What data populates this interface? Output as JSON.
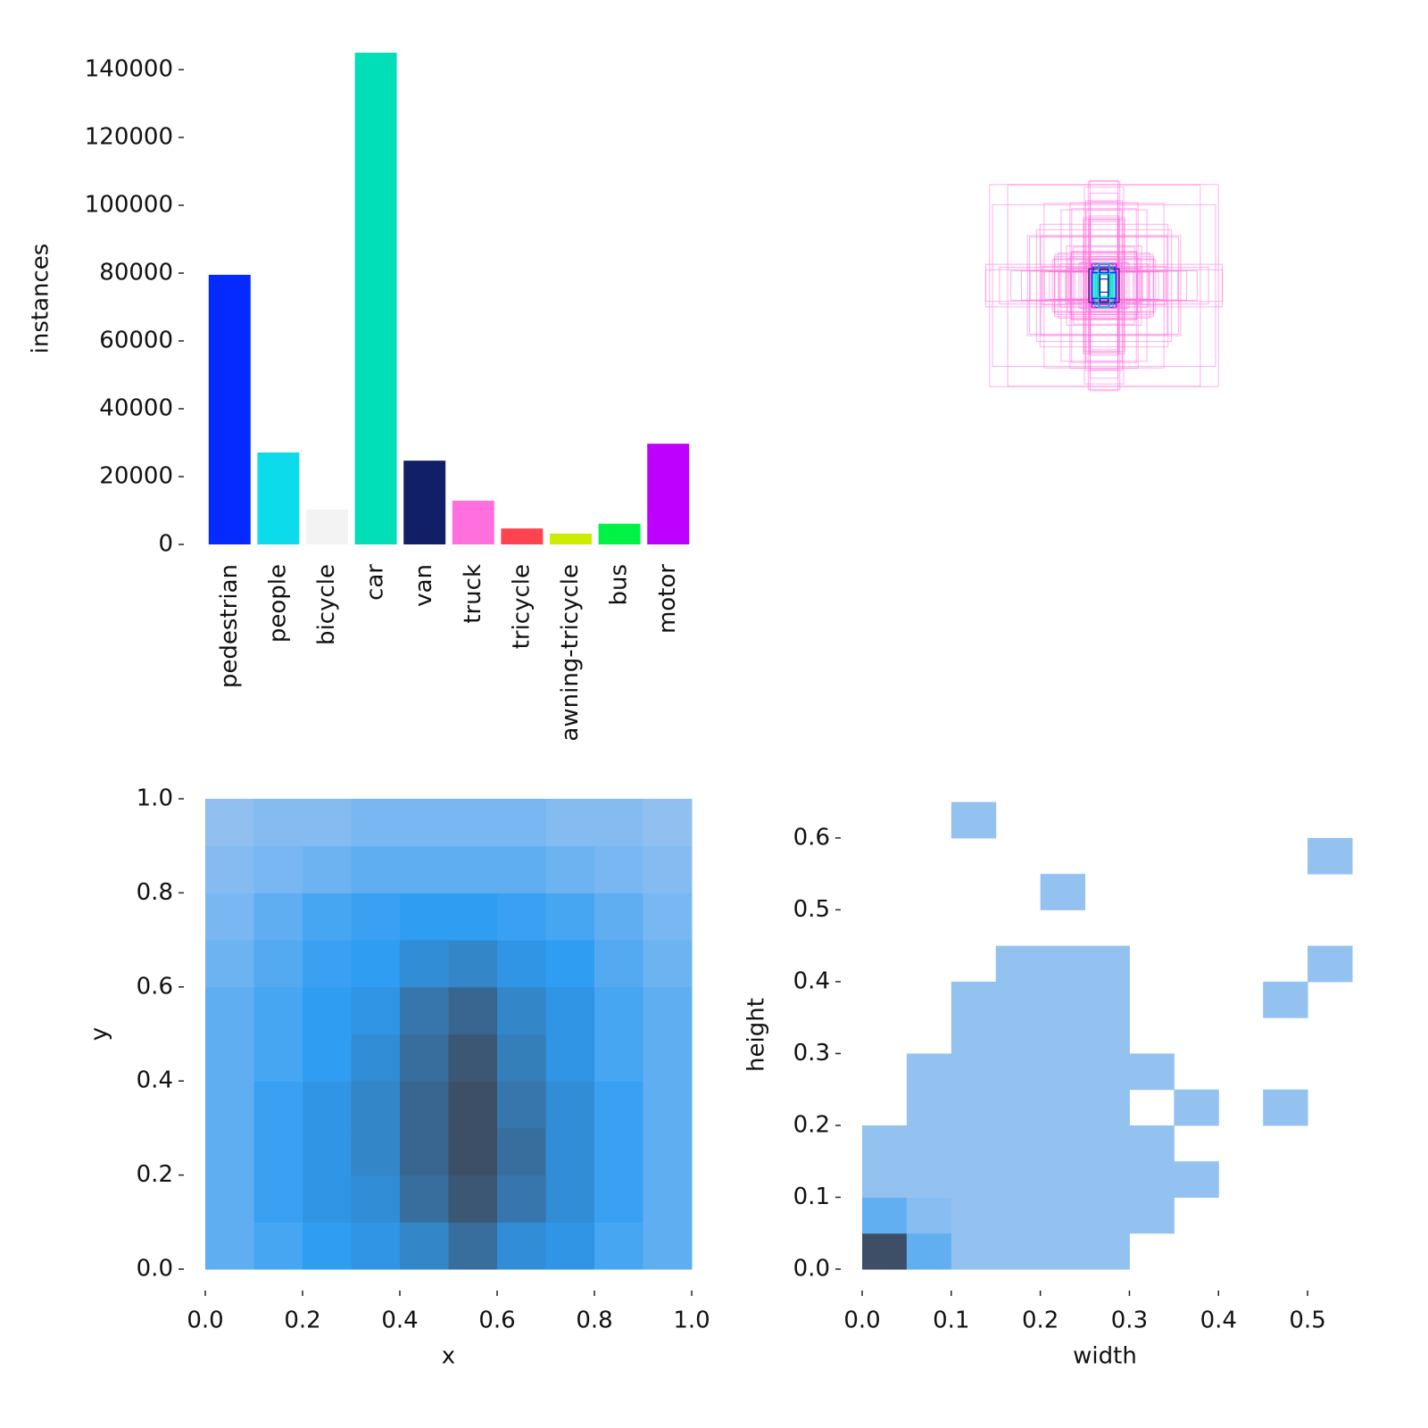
{
  "chart_data": [
    {
      "type": "bar",
      "ylabel": "instances",
      "categories": [
        "pedestrian",
        "people",
        "bicycle",
        "car",
        "van",
        "truck",
        "tricycle",
        "awning-tricycle",
        "bus",
        "motor"
      ],
      "values": [
        79500,
        27100,
        10300,
        145000,
        24700,
        12900,
        4700,
        3200,
        6100,
        29700
      ],
      "colors": [
        "#042aff",
        "#0bdbeb",
        "#f3f3f3",
        "#00dfb7",
        "#111f68",
        "#ff6fdd",
        "#ff444f",
        "#cced00",
        "#00f344",
        "#bd00ff"
      ],
      "ylim": [
        0,
        145000
      ],
      "yticks": [
        0,
        20000,
        40000,
        60000,
        80000,
        100000,
        120000,
        140000
      ]
    },
    {
      "type": "heatmap",
      "xlabel": "x",
      "ylabel": "y",
      "xlim": [
        0,
        1
      ],
      "ylim": [
        0,
        1
      ],
      "xticks": [
        {
          "value": 0,
          "label": "0.0"
        },
        0.2,
        0.4,
        0.6,
        0.8,
        {
          "value": 1,
          "label": "1.0"
        }
      ],
      "yticks": [
        {
          "value": 0,
          "label": "0.0"
        },
        0.2,
        0.4,
        0.6,
        0.8,
        {
          "value": 1,
          "label": "1.0"
        }
      ],
      "colors": [
        "#a9c8f0",
        "#2e9df2",
        "#3d4f66"
      ],
      "xbins": [
        0,
        0.1,
        0.2,
        0.3,
        0.4,
        0.5,
        0.6,
        0.7,
        0.8,
        0.9,
        1
      ],
      "ybins": [
        0,
        0.1,
        0.2,
        0.3,
        0.4,
        0.5,
        0.6,
        0.7,
        0.8,
        0.9,
        1
      ],
      "values": [
        [
          0.3,
          0.4,
          0.5,
          0.55,
          0.65,
          0.8,
          0.6,
          0.55,
          0.4,
          0.3
        ],
        [
          0.3,
          0.45,
          0.55,
          0.6,
          0.8,
          0.95,
          0.75,
          0.6,
          0.45,
          0.3
        ],
        [
          0.3,
          0.45,
          0.55,
          0.65,
          0.85,
          1.0,
          0.8,
          0.6,
          0.45,
          0.3
        ],
        [
          0.3,
          0.45,
          0.55,
          0.65,
          0.85,
          1.0,
          0.75,
          0.6,
          0.45,
          0.3
        ],
        [
          0.3,
          0.4,
          0.5,
          0.6,
          0.8,
          0.95,
          0.7,
          0.55,
          0.4,
          0.3
        ],
        [
          0.3,
          0.4,
          0.5,
          0.55,
          0.75,
          0.85,
          0.65,
          0.55,
          0.4,
          0.3
        ],
        [
          0.25,
          0.35,
          0.45,
          0.5,
          0.6,
          0.65,
          0.55,
          0.5,
          0.35,
          0.25
        ],
        [
          0.2,
          0.3,
          0.4,
          0.45,
          0.5,
          0.5,
          0.45,
          0.4,
          0.3,
          0.2
        ],
        [
          0.15,
          0.2,
          0.25,
          0.3,
          0.3,
          0.3,
          0.3,
          0.25,
          0.2,
          0.15
        ],
        [
          0.1,
          0.15,
          0.15,
          0.2,
          0.2,
          0.2,
          0.2,
          0.15,
          0.15,
          0.1
        ]
      ]
    },
    {
      "type": "heatmap",
      "xlabel": "width",
      "ylabel": "height",
      "xlim": [
        0,
        0.545
      ],
      "ylim": [
        0,
        0.652
      ],
      "xticks": [
        {
          "value": 0,
          "label": "0.0"
        },
        0.1,
        0.2,
        0.3,
        0.4,
        0.5
      ],
      "yticks": [
        {
          "value": 0,
          "label": "0.0"
        },
        0.1,
        0.2,
        0.3,
        0.4,
        0.5,
        0.6
      ],
      "colors": [
        "#aecbf0",
        "#2e9df2",
        "#3d4f66"
      ],
      "xbins": [
        0,
        0.05,
        0.1,
        0.15,
        0.2,
        0.25,
        0.3,
        0.35,
        0.4,
        0.45,
        0.5,
        0.55
      ],
      "ybins": [
        0,
        0.05,
        0.1,
        0.15,
        0.2,
        0.25,
        0.3,
        0.35,
        0.4,
        0.45,
        0.5,
        0.55,
        0.6,
        0.65
      ],
      "values": [
        [
          1.0,
          0.3,
          0.1,
          0.1,
          0.1,
          0.1,
          null,
          null,
          null,
          null,
          null
        ],
        [
          0.3,
          0.15,
          0.1,
          0.1,
          0.1,
          0.1,
          0.1,
          null,
          null,
          null,
          null
        ],
        [
          0.1,
          0.1,
          0.1,
          0.1,
          0.1,
          0.1,
          0.1,
          0.1,
          null,
          null,
          null
        ],
        [
          0.1,
          0.1,
          0.1,
          0.1,
          0.1,
          0.1,
          0.1,
          null,
          null,
          null,
          null
        ],
        [
          null,
          0.1,
          0.1,
          0.1,
          0.1,
          0.1,
          null,
          0.1,
          null,
          0.1,
          null
        ],
        [
          null,
          0.1,
          0.1,
          0.1,
          0.1,
          0.1,
          0.1,
          null,
          null,
          null,
          null
        ],
        [
          null,
          null,
          0.1,
          0.1,
          0.1,
          0.1,
          null,
          null,
          null,
          null,
          null
        ],
        [
          null,
          null,
          0.1,
          0.1,
          0.1,
          0.1,
          null,
          null,
          null,
          0.1,
          null
        ],
        [
          null,
          null,
          null,
          0.1,
          0.1,
          0.1,
          null,
          null,
          null,
          null,
          0.1
        ],
        [
          null,
          null,
          null,
          null,
          null,
          null,
          null,
          null,
          null,
          null,
          null
        ],
        [
          null,
          null,
          null,
          null,
          0.1,
          null,
          null,
          null,
          null,
          null,
          null
        ],
        [
          null,
          null,
          null,
          null,
          null,
          null,
          null,
          null,
          null,
          null,
          0.1
        ],
        [
          null,
          null,
          0.1,
          null,
          null,
          null,
          null,
          null,
          null,
          null,
          null
        ]
      ]
    }
  ]
}
